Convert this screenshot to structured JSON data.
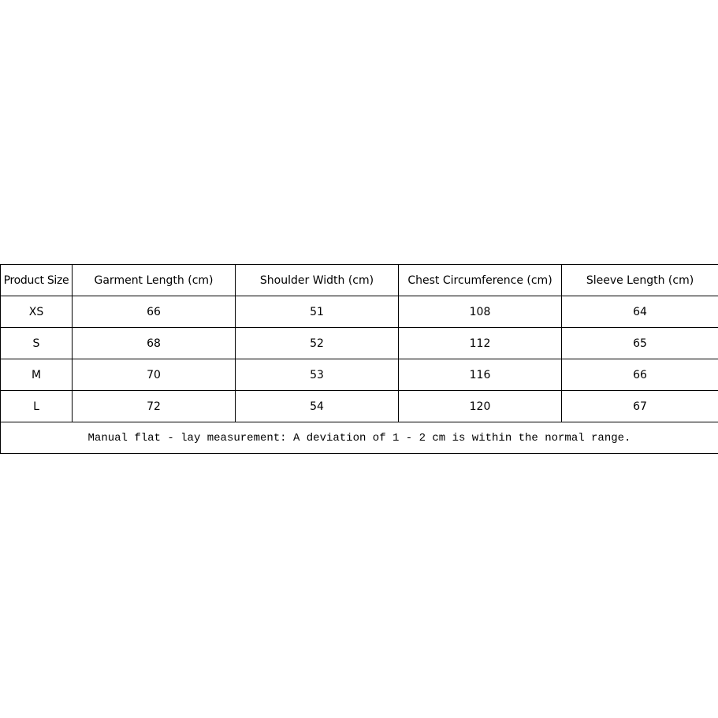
{
  "table": {
    "headers": [
      "Product Size",
      "Garment Length (cm)",
      "Shoulder Width (cm)",
      "Chest Circumference (cm)",
      "Sleeve Length (cm)"
    ],
    "rows": [
      [
        "XS",
        "66",
        "51",
        "108",
        "64"
      ],
      [
        "S",
        "68",
        "52",
        "112",
        "65"
      ],
      [
        "M",
        "70",
        "53",
        "116",
        "66"
      ],
      [
        "L",
        "72",
        "54",
        "120",
        "67"
      ]
    ],
    "note": "Manual flat - lay measurement: A deviation of 1 - 2 cm is within the normal range."
  }
}
